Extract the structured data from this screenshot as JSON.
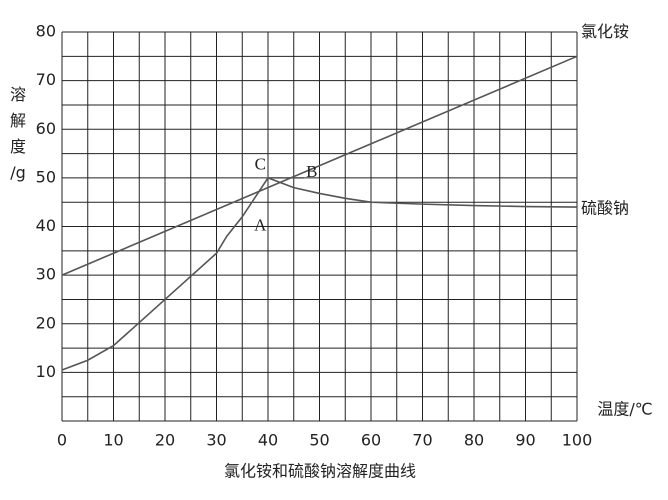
{
  "chart_data": {
    "type": "line",
    "title": "氯化铵和硫酸钠溶解度曲线",
    "xlabel": "温度/℃",
    "ylabel": "溶解度/g",
    "xlim": [
      0,
      100
    ],
    "xticks": [
      0,
      10,
      20,
      30,
      40,
      50,
      60,
      70,
      80,
      90,
      100
    ],
    "ylim": [
      0,
      80
    ],
    "yticks": [
      10,
      20,
      30,
      40,
      50,
      60,
      70,
      80
    ],
    "grid": true,
    "series": [
      {
        "name": "氯化铵",
        "color": "#555555",
        "x": [
          0,
          100
        ],
        "values": [
          30,
          75
        ]
      },
      {
        "name": "硫酸钠",
        "color": "#555555",
        "x": [
          0,
          5,
          10,
          20,
          30,
          32,
          35,
          40,
          45,
          50,
          55,
          60,
          70,
          80,
          90,
          100
        ],
        "values": [
          10.5,
          12.5,
          15.5,
          25,
          34.5,
          38,
          42,
          50,
          48,
          46.8,
          45.8,
          45,
          44.6,
          44.3,
          44.1,
          44
        ]
      },
      {
        "color": "#555555",
        "x": [
          40,
          47
        ],
        "values": [
          50,
          50
        ]
      }
    ],
    "annotations": [
      {
        "text": "A",
        "x": 38.5,
        "y": 40
      },
      {
        "text": "B",
        "x": 48.5,
        "y": 51
      },
      {
        "text": "C",
        "x": 38.5,
        "y": 52.5
      }
    ]
  }
}
